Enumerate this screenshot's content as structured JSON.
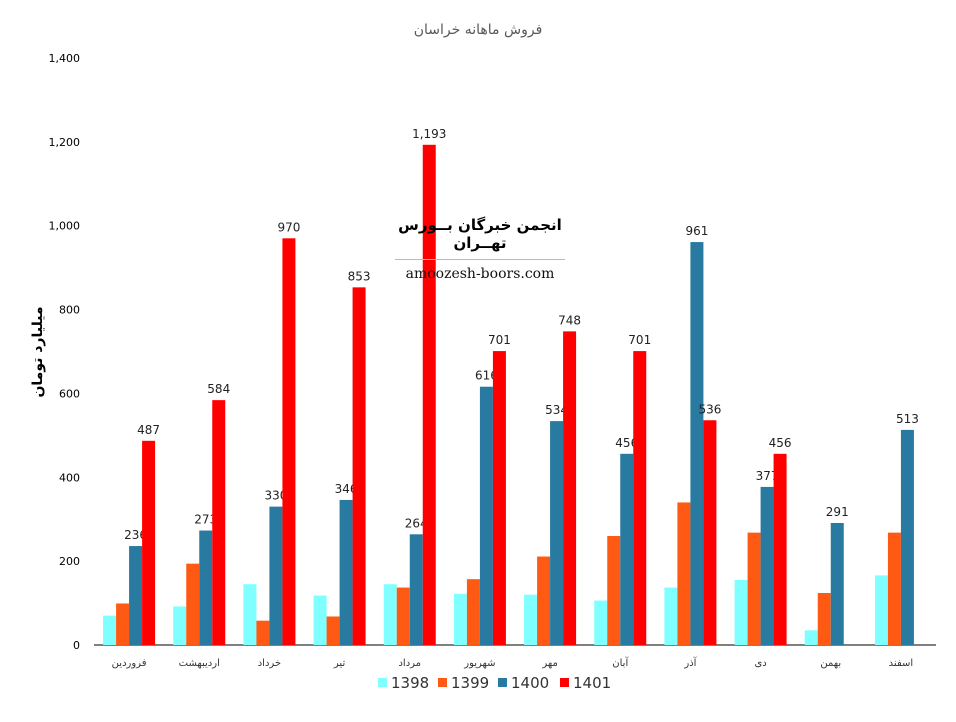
{
  "chart_data": {
    "type": "bar",
    "title": "فروش ماهانه خراسان",
    "xlabel": "",
    "ylabel": "میلیارد تومان",
    "ylim": [
      0,
      1400
    ],
    "yticks": [
      "0",
      "200",
      "400",
      "600",
      "800",
      "1,000",
      "1,200",
      "1,400"
    ],
    "ytick_values": [
      0,
      200,
      400,
      600,
      800,
      1000,
      1200,
      1400
    ],
    "grid": false,
    "legend_position": "bottom",
    "categories": [
      "فروردین",
      "اردیبهشت",
      "خرداد",
      "تیر",
      "مرداد",
      "شهریور",
      "مهر",
      "آبان",
      "آذر",
      "دی",
      "بهمن",
      "اسفند"
    ],
    "series": [
      {
        "name": "1398",
        "color": "#7FFFFF",
        "values": [
          70,
          92,
          145,
          118,
          145,
          122,
          120,
          106,
          137,
          155,
          35,
          166
        ],
        "labels": [
          "",
          "",
          "",
          "",
          "",
          "",
          "",
          "",
          "",
          "",
          "",
          ""
        ]
      },
      {
        "name": "1399",
        "color": "#FF5A14",
        "values": [
          99,
          194,
          58,
          68,
          137,
          157,
          211,
          260,
          340,
          268,
          124,
          268
        ],
        "labels": [
          "",
          "",
          "",
          "",
          "",
          "",
          "",
          "",
          "",
          "",
          "",
          ""
        ]
      },
      {
        "name": "1400",
        "color": "#287AA0",
        "values": [
          236,
          273,
          330,
          346,
          264,
          616,
          534,
          456,
          961,
          377,
          291,
          513
        ],
        "labels": [
          "236",
          "273",
          "330",
          "346",
          "264",
          "616",
          "534",
          "456",
          "961",
          "377",
          "291",
          "513"
        ]
      },
      {
        "name": "1401",
        "color": "#FF0000",
        "values": [
          487,
          584,
          970,
          853,
          1193,
          701,
          748,
          701,
          536,
          456,
          null,
          null
        ],
        "labels": [
          "487",
          "584",
          "970",
          "853",
          "1,193",
          "701",
          "748",
          "701",
          "536",
          "456",
          "",
          ""
        ]
      }
    ]
  },
  "watermark": {
    "title": "انجمن خبرگان بــورس تهــران",
    "url": "amoozesh-boors.com"
  }
}
